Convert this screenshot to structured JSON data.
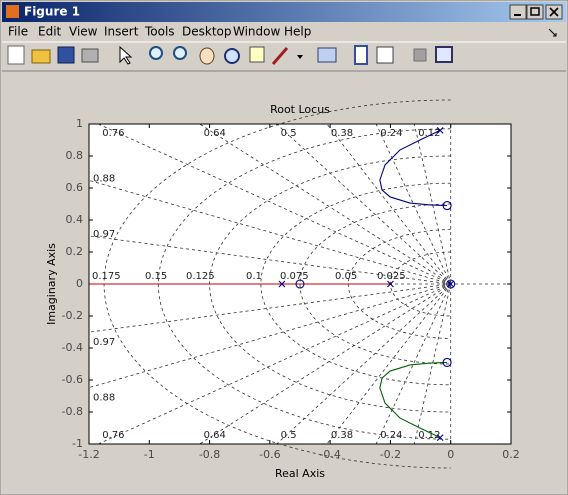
{
  "window": {
    "title": "Figure 1",
    "menus": [
      "File",
      "Edit",
      "View",
      "Insert",
      "Tools",
      "Desktop",
      "Window",
      "Help"
    ]
  },
  "chart_data": {
    "type": "rootlocus",
    "title": "Root Locus",
    "xlabel": "Real Axis",
    "ylabel": "Imaginary Axis",
    "xlim": [
      -1.2,
      0.2
    ],
    "ylim": [
      -1,
      1
    ],
    "xticks": [
      -1.2,
      -1,
      -0.8,
      -0.6,
      -0.4,
      -0.2,
      0,
      0.2
    ],
    "yticks": [
      -1,
      -0.8,
      -0.6,
      -0.4,
      -0.2,
      0,
      0.2,
      0.4,
      0.6,
      0.8,
      1
    ],
    "grid": true,
    "damping_labels": [
      0.76,
      0.64,
      0.5,
      0.38,
      0.24,
      0.12,
      0.88,
      0.97
    ],
    "frequency_labels": [
      0.175,
      0.15,
      0.125,
      0.1,
      0.075,
      0.05,
      0.025
    ],
    "branches": [
      {
        "color": "#00008b",
        "x": [
          -0.035,
          -0.102,
          -0.168,
          -0.218,
          -0.235,
          -0.228,
          -0.201,
          -0.135,
          -0.069,
          -0.012
        ],
        "y": [
          0.96,
          0.9,
          0.838,
          0.744,
          0.65,
          0.588,
          0.544,
          0.506,
          0.494,
          0.49
        ]
      },
      {
        "color": "#006400",
        "x": [
          -0.035,
          -0.102,
          -0.168,
          -0.218,
          -0.235,
          -0.228,
          -0.201,
          -0.135,
          -0.069,
          -0.012
        ],
        "y": [
          -0.96,
          -0.9,
          -0.838,
          -0.744,
          -0.65,
          -0.588,
          -0.544,
          -0.506,
          -0.494,
          -0.49
        ]
      },
      {
        "color": "#c00000",
        "x": [
          -1.2,
          -0.2
        ],
        "y": [
          0,
          0
        ]
      }
    ],
    "poles": {
      "color": "#00008b",
      "x": [
        -0.035,
        -0.035,
        -0.56,
        -0.2,
        0
      ],
      "y": [
        0.96,
        -0.96,
        0,
        0,
        0
      ]
    },
    "zeros": {
      "color": "#00008b",
      "x": [
        -0.012,
        -0.012,
        -0.5,
        0
      ],
      "y": [
        0.49,
        -0.49,
        0,
        0
      ]
    }
  }
}
